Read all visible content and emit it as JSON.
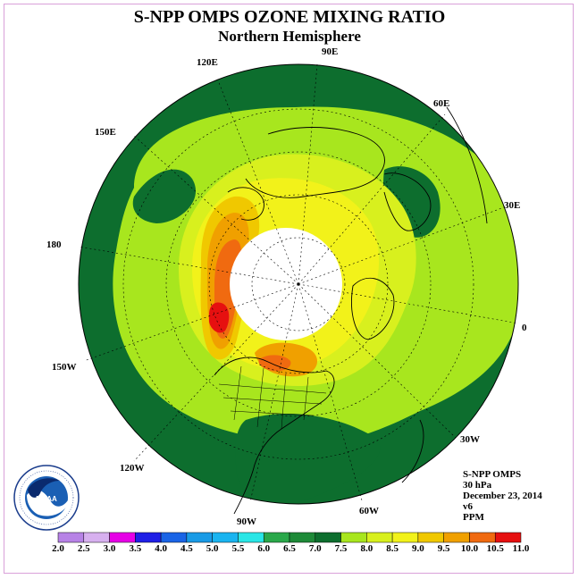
{
  "title": "S-NPP OMPS OZONE MIXING RATIO",
  "subtitle": "Northern Hemisphere",
  "longitude_labels": [
    "90E",
    "60E",
    "30E",
    "0",
    "30W",
    "60W",
    "90W",
    "120W",
    "150W",
    "180",
    "150E",
    "120E"
  ],
  "info": {
    "instrument": "S-NPP OMPS",
    "level": "30 hPa",
    "date": "December 23, 2014",
    "version": "v6",
    "units": "PPM"
  },
  "colorbar": {
    "ticks": [
      "2.0",
      "2.5",
      "3.0",
      "3.5",
      "4.0",
      "4.5",
      "5.0",
      "5.5",
      "6.0",
      "6.5",
      "7.0",
      "7.5",
      "8.0",
      "8.5",
      "9.0",
      "9.5",
      "10.0",
      "10.5",
      "11.0"
    ],
    "colors": [
      "#b782e6",
      "#d7b0ef",
      "#e600e6",
      "#1f1fe6",
      "#1a64e6",
      "#1a9be6",
      "#1ab4f0",
      "#2ae6e6",
      "#2aa84a",
      "#1e8a38",
      "#0d6e2e",
      "#a8e61e",
      "#d8f01e",
      "#f2f21a",
      "#f0c800",
      "#f0a000",
      "#f06a10",
      "#e61010",
      "#8a5a3a"
    ]
  },
  "logo": {
    "name": "NOAA",
    "ring_text": "NATIONAL OCEANIC AND ATMOSPHERIC ADMINISTRATION · U.S. DEPARTMENT OF COMMERCE"
  }
}
